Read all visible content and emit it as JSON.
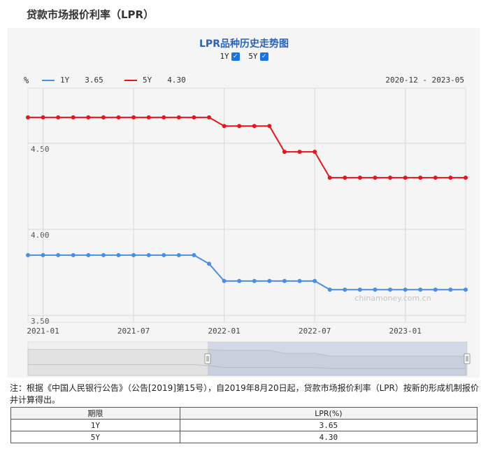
{
  "page": {
    "title": "贷款市场报价利率（LPR）"
  },
  "chart_data": {
    "type": "line",
    "title": "LPR品种历史走势图",
    "toggles": [
      {
        "label": "1Y",
        "checked": true
      },
      {
        "label": "5Y",
        "checked": true
      }
    ],
    "ylabel": "%",
    "date_range": "2020-12 - 2023-05",
    "ylim": [
      3.46,
      4.82
    ],
    "yticks": [
      "4.50",
      "4.00",
      "3.50"
    ],
    "ytick_values": [
      4.5,
      4.0,
      3.5
    ],
    "xticks": [
      "2021-01",
      "2021-07",
      "2022-01",
      "2022-07",
      "2023-01"
    ],
    "x": [
      "2020-12",
      "2021-01",
      "2021-02",
      "2021-03",
      "2021-04",
      "2021-05",
      "2021-06",
      "2021-07",
      "2021-08",
      "2021-09",
      "2021-10",
      "2021-11",
      "2021-12",
      "2022-01",
      "2022-02",
      "2022-03",
      "2022-04",
      "2022-05",
      "2022-06",
      "2022-07",
      "2022-08",
      "2022-09",
      "2022-10",
      "2022-11",
      "2022-12",
      "2023-01",
      "2023-02",
      "2023-03",
      "2023-04",
      "2023-05"
    ],
    "series": [
      {
        "name": "1Y",
        "legend_value": "3.65",
        "color": "#4a8fe0",
        "values": [
          3.85,
          3.85,
          3.85,
          3.85,
          3.85,
          3.85,
          3.85,
          3.85,
          3.85,
          3.85,
          3.85,
          3.85,
          3.8,
          3.7,
          3.7,
          3.7,
          3.7,
          3.7,
          3.7,
          3.7,
          3.65,
          3.65,
          3.65,
          3.65,
          3.65,
          3.65,
          3.65,
          3.65,
          3.65,
          3.65
        ]
      },
      {
        "name": "5Y",
        "legend_value": "4.30",
        "color": "#e8161b",
        "values": [
          4.65,
          4.65,
          4.65,
          4.65,
          4.65,
          4.65,
          4.65,
          4.65,
          4.65,
          4.65,
          4.65,
          4.65,
          4.65,
          4.6,
          4.6,
          4.6,
          4.6,
          4.45,
          4.45,
          4.45,
          4.3,
          4.3,
          4.3,
          4.3,
          4.3,
          4.3,
          4.3,
          4.3,
          4.3,
          4.3
        ]
      }
    ],
    "watermark": "chinamoney.com.cn",
    "grid": true,
    "navigator": {
      "selected_from": "2021-12",
      "selected_to": "2023-05"
    }
  },
  "note": "注：根据《中国人民银行公告》（公告[2019]第15号），自2019年8月20日起，贷款市场报价利率（LPR）按新的形成机制报价并计算得出。",
  "table": {
    "headers": [
      "期限",
      "LPR(%)"
    ],
    "rows": [
      [
        "1Y",
        "3.65"
      ],
      [
        "5Y",
        "4.30"
      ]
    ]
  }
}
